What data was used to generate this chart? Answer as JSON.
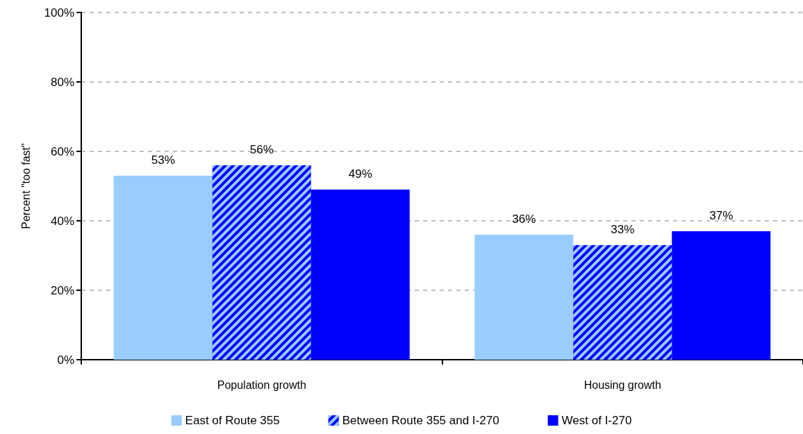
{
  "chart_data": {
    "type": "bar",
    "categories": [
      "Population growth",
      "Housing growth"
    ],
    "series": [
      {
        "name": "East of Route 355",
        "color": "#99ccff",
        "values": [
          53,
          36
        ],
        "value_labels": [
          "53%",
          "36%"
        ]
      },
      {
        "name": "Between Route 355 and I-270",
        "color": "#0000ff",
        "values": [
          56,
          33
        ],
        "value_labels": [
          "56%",
          "33%"
        ]
      },
      {
        "name": "West of I-270",
        "color": "#0000ff",
        "values": [
          49,
          37
        ],
        "value_labels": [
          "49%",
          "37%"
        ]
      }
    ],
    "ylabel": "Percent \"too fast\"",
    "ylim": [
      0,
      100
    ],
    "yticks": [
      {
        "value": 0,
        "label": "0%"
      },
      {
        "value": 20,
        "label": "20%"
      },
      {
        "value": 40,
        "label": "40%"
      },
      {
        "value": 60,
        "label": "60%"
      },
      {
        "value": 80,
        "label": "80%"
      },
      {
        "value": 100,
        "label": "100%"
      }
    ],
    "grid": "y",
    "legend": "bottom"
  }
}
